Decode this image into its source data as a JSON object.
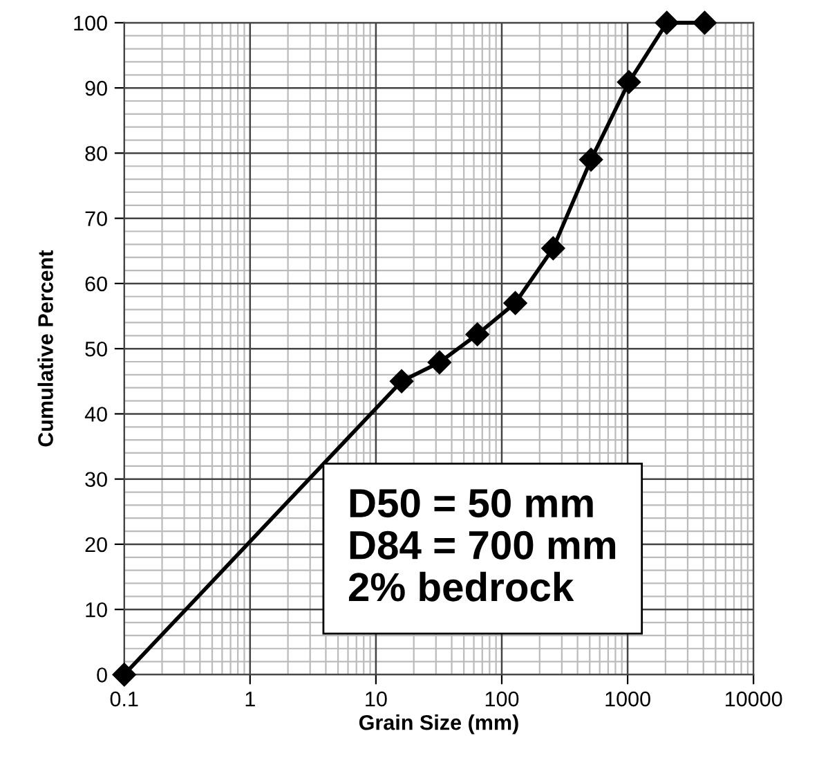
{
  "chart_data": {
    "type": "line",
    "xlabel": "Grain Size (mm)",
    "ylabel": "Cumulative Percent",
    "x": [
      0.1,
      16,
      32,
      64,
      128,
      256,
      512,
      1024,
      2048,
      4096
    ],
    "series": [
      {
        "color": "#000000",
        "values": [
          0,
          45,
          47.9,
          52.2,
          57,
          65.4,
          79,
          90.9,
          100,
          100
        ]
      }
    ],
    "log": "x",
    "xlim": [
      0.1,
      10000
    ],
    "xticks": [
      0.1,
      1,
      10,
      100,
      1000,
      10000
    ],
    "ylim": [
      0,
      100
    ],
    "yticks": [
      0,
      10,
      20,
      30,
      40,
      50,
      60,
      70,
      80,
      90,
      100
    ],
    "grid": true,
    "marker": "diamond",
    "line_style": "solid",
    "annotations": [
      "D50 = 50 mm\nD84 = 700 mm\n2% bedrock"
    ]
  }
}
